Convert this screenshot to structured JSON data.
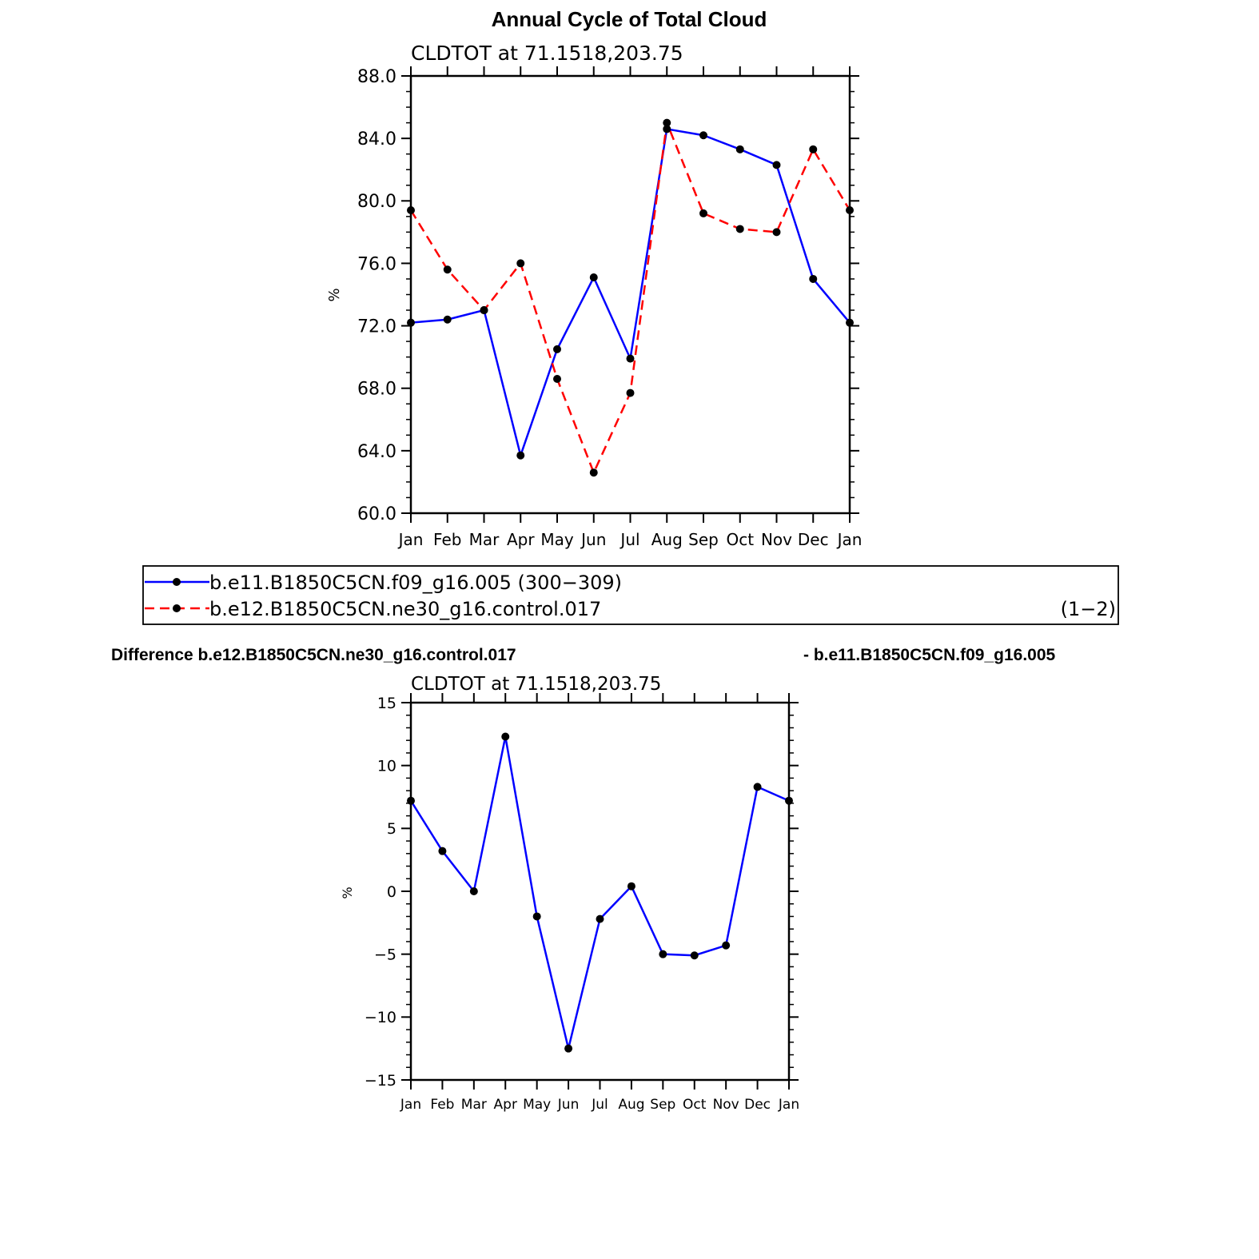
{
  "page_title": "Annual Cycle of Total Cloud",
  "chart_data": [
    {
      "type": "line",
      "subtitle": "CLDTOT at 71.1518,203.75",
      "ylabel": "%",
      "categories": [
        "Jan",
        "Feb",
        "Mar",
        "Apr",
        "May",
        "Jun",
        "Jul",
        "Aug",
        "Sep",
        "Oct",
        "Nov",
        "Dec",
        "Jan"
      ],
      "ylim": [
        60,
        88
      ],
      "yticks": [
        60,
        64,
        68,
        72,
        76,
        80,
        84,
        88
      ],
      "ytick_labels": [
        "60.0",
        "64.0",
        "68.0",
        "72.0",
        "76.0",
        "80.0",
        "84.0",
        "88.0"
      ],
      "series": [
        {
          "name": "b.e11.B1850C5CN.f09_g16.005 (300−309)",
          "color": "#0000ff",
          "dash": "solid",
          "values": [
            72.2,
            72.4,
            73.0,
            63.7,
            70.5,
            75.1,
            69.9,
            84.6,
            84.2,
            83.3,
            82.3,
            75.0,
            72.2
          ]
        },
        {
          "name": "b.e12.B1850C5CN.ne30_g16.control.017",
          "color": "#ff0000",
          "dash": "dashed",
          "values": [
            79.4,
            75.6,
            73.0,
            76.0,
            68.6,
            62.6,
            67.7,
            85.0,
            79.2,
            78.2,
            78.0,
            83.3,
            79.4
          ]
        }
      ],
      "legend": {
        "placement": "bottom",
        "extra_label": "(1−2)"
      }
    },
    {
      "type": "line",
      "title_left": "Difference b.e12.B1850C5CN.ne30_g16.control.017",
      "title_right": "- b.e11.B1850C5CN.f09_g16.005",
      "subtitle": "CLDTOT at 71.1518,203.75",
      "ylabel": "%",
      "categories": [
        "Jan",
        "Feb",
        "Mar",
        "Apr",
        "May",
        "Jun",
        "Jul",
        "Aug",
        "Sep",
        "Oct",
        "Nov",
        "Dec",
        "Jan"
      ],
      "ylim": [
        -15,
        15
      ],
      "yticks": [
        -15,
        -10,
        -5,
        0,
        5,
        10,
        15
      ],
      "ytick_labels": [
        "−15",
        "−10",
        "−5",
        "0",
        "5",
        "10",
        "15"
      ],
      "series": [
        {
          "color": "#0000ff",
          "dash": "solid",
          "values": [
            7.2,
            3.2,
            0.0,
            12.3,
            -2.0,
            -12.5,
            -2.2,
            0.4,
            -5.0,
            -5.1,
            -4.3,
            8.3,
            7.2
          ]
        }
      ]
    }
  ]
}
